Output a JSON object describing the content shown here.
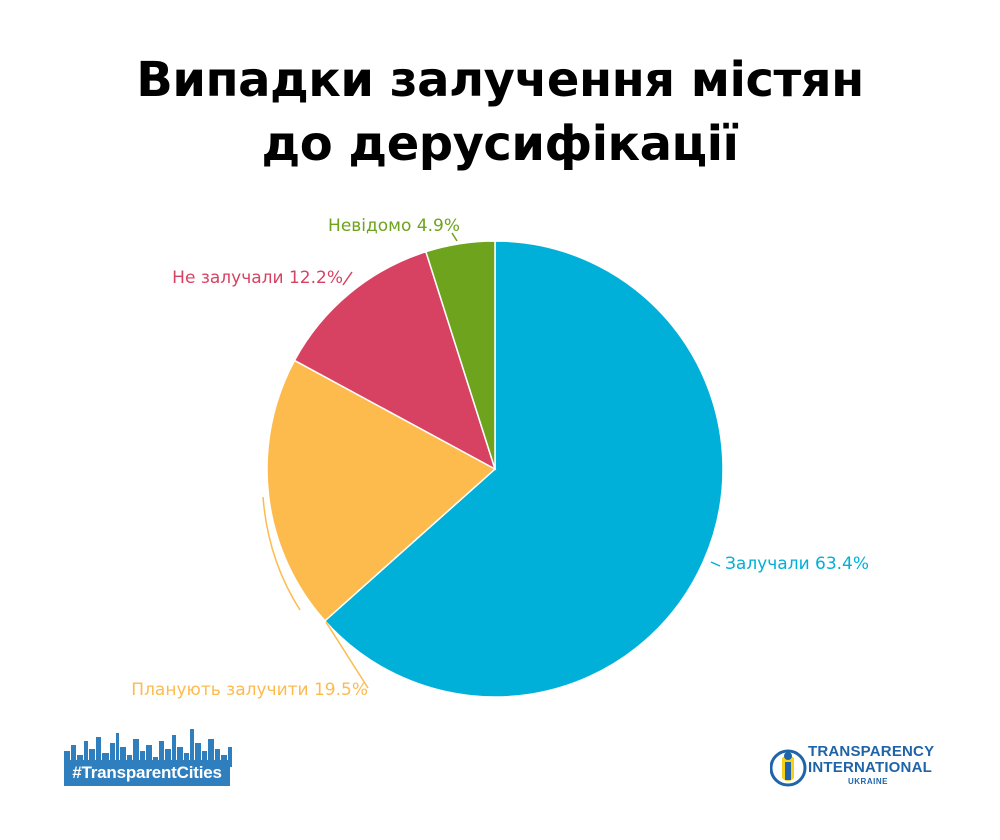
{
  "title": {
    "line1": "Випадки залучення містян",
    "line2": "до дерусифікації"
  },
  "chart_data": {
    "type": "pie",
    "title": "Випадки залучення містян до дерусифікації",
    "slices": [
      {
        "label": "Залучали",
        "value": 63.4,
        "display": "Залучали 63.4%",
        "color": "#00b0d8"
      },
      {
        "label": "Планують залучити",
        "value": 19.5,
        "display": "Планують залучити 19.5%",
        "color": "#fdbb4d"
      },
      {
        "label": "Не залучали",
        "value": 12.2,
        "display": "Не залучали 12.2%",
        "color": "#d84262"
      },
      {
        "label": "Невідомо",
        "value": 4.9,
        "display": "Невідомо 4.9%",
        "color": "#6ea31d"
      }
    ],
    "start": "top, clockwise"
  },
  "branding": {
    "hashtag": "#TransparentCities",
    "hashtag_color": "#2f7fbf",
    "ti_line1": "TRANSPARENCY",
    "ti_line2": "INTERNATIONAL",
    "ti_line3": "UKRAINE",
    "ti_color": "#1f64a8",
    "ti_accent": "#f7d117"
  }
}
